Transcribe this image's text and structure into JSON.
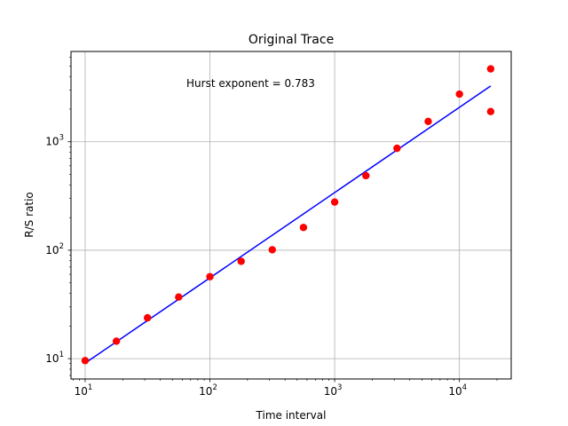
{
  "chart_data": {
    "type": "scatter",
    "title": "Original Trace",
    "xlabel": "Time interval",
    "ylabel": "R/S ratio",
    "xscale": "log",
    "yscale": "log",
    "xlim": [
      7.7,
      26000
    ],
    "ylim": [
      6.5,
      6800
    ],
    "grid": true,
    "annotation": "Hurst exponent = 0.783",
    "x_ticks": [
      {
        "base": "10",
        "exp": "1"
      },
      {
        "base": "10",
        "exp": "2"
      },
      {
        "base": "10",
        "exp": "3"
      },
      {
        "base": "10",
        "exp": "4"
      }
    ],
    "y_ticks": [
      {
        "base": "10",
        "exp": "1"
      },
      {
        "base": "10",
        "exp": "2"
      },
      {
        "base": "10",
        "exp": "3"
      }
    ],
    "series": [
      {
        "type": "scatter",
        "color": "#ff0000",
        "x": [
          10,
          17.8,
          31.6,
          56.2,
          100,
          178,
          316,
          562,
          1000,
          1780,
          3160,
          5620,
          10000,
          17800,
          17800
        ],
        "y": [
          9.6,
          14.5,
          23.8,
          37,
          57,
          79,
          101,
          162,
          278,
          487,
          870,
          1540,
          2750,
          4700,
          1900
        ]
      },
      {
        "type": "line",
        "color": "#0000ff",
        "x": [
          10,
          17800
        ],
        "y": [
          9.1,
          3270
        ]
      }
    ]
  }
}
